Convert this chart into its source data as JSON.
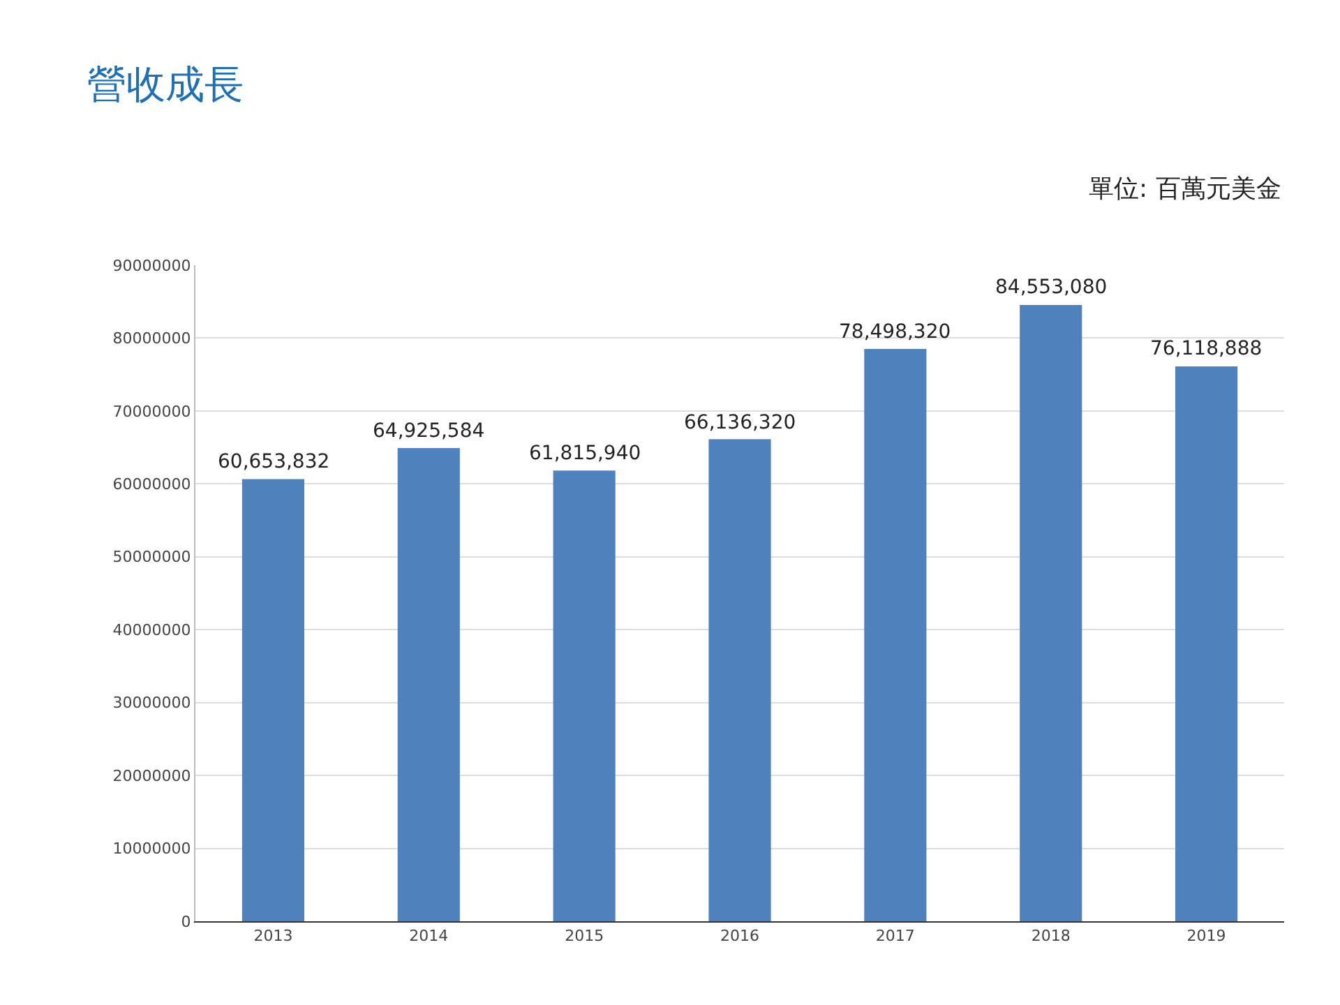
{
  "chart_data": {
    "type": "bar",
    "title": "營收成長",
    "annotations": [
      "單位: 百萬元美金"
    ],
    "categories": [
      "2013",
      "2014",
      "2015",
      "2016",
      "2017",
      "2018",
      "2019"
    ],
    "values": [
      60653832,
      64925584,
      61815940,
      66136320,
      78498320,
      84553080,
      76118888
    ],
    "color": "#4f81bd",
    "value_labels": [
      "60,653,832",
      "64,925,584",
      "61,815,940",
      "66,136,320",
      "78,498,320",
      "84,553,080",
      "76,118,888"
    ],
    "ylim": [
      0,
      90000000
    ],
    "yticks": [
      0,
      10000000,
      20000000,
      30000000,
      40000000,
      50000000,
      60000000,
      70000000,
      80000000,
      90000000
    ],
    "grid": "y"
  }
}
